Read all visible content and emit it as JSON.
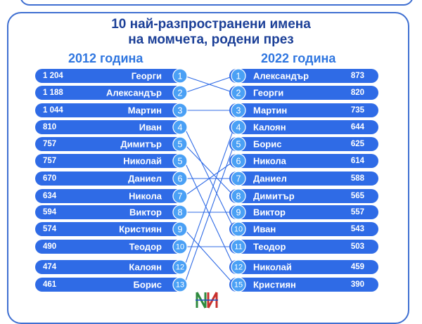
{
  "title_line1": "10 най-разпространени имена",
  "title_line2": "на момчета, родени през",
  "left_heading": "2012 година",
  "right_heading": "2022 година",
  "colors": {
    "bar": "#2f6be6",
    "bar_dark": "#1e4fc4",
    "badge": "#4aa0f5",
    "text": "#ffffff",
    "line": "#2f6be6",
    "title": "#1b3f97",
    "heading": "#2f76e0"
  },
  "chart_data": {
    "type": "table",
    "series": [
      {
        "name": "2012 година",
        "rows": [
          {
            "rank": "1",
            "name": "Георги",
            "value": "1 204"
          },
          {
            "rank": "2",
            "name": "Александър",
            "value": "1 188"
          },
          {
            "rank": "3",
            "name": "Мартин",
            "value": "1 044"
          },
          {
            "rank": "4",
            "name": "Иван",
            "value": "810"
          },
          {
            "rank": "5",
            "name": "Димитър",
            "value": "757"
          },
          {
            "rank": "5",
            "name": "Николай",
            "value": "757"
          },
          {
            "rank": "6",
            "name": "Даниел",
            "value": "670"
          },
          {
            "rank": "7",
            "name": "Никола",
            "value": "634"
          },
          {
            "rank": "8",
            "name": "Виктор",
            "value": "594"
          },
          {
            "rank": "9",
            "name": "Кристиян",
            "value": "574"
          },
          {
            "rank": "10",
            "name": "Теодор",
            "value": "490"
          },
          {
            "rank": "12",
            "name": "Калоян",
            "value": "474"
          },
          {
            "rank": "13",
            "name": "Борис",
            "value": "461"
          }
        ]
      },
      {
        "name": "2022 година",
        "rows": [
          {
            "rank": "1",
            "name": "Александър",
            "value": "873"
          },
          {
            "rank": "2",
            "name": "Георги",
            "value": "820"
          },
          {
            "rank": "3",
            "name": "Мартин",
            "value": "735"
          },
          {
            "rank": "4",
            "name": "Калоян",
            "value": "644"
          },
          {
            "rank": "5",
            "name": "Борис",
            "value": "625"
          },
          {
            "rank": "6",
            "name": "Никола",
            "value": "614"
          },
          {
            "rank": "7",
            "name": "Даниел",
            "value": "588"
          },
          {
            "rank": "8",
            "name": "Димитър",
            "value": "565"
          },
          {
            "rank": "9",
            "name": "Виктор",
            "value": "557"
          },
          {
            "rank": "10",
            "name": "Иван",
            "value": "543"
          },
          {
            "rank": "11",
            "name": "Теодор",
            "value": "503"
          },
          {
            "rank": "12",
            "name": "Николай",
            "value": "459"
          },
          {
            "rank": "15",
            "name": "Кристиян",
            "value": "390"
          }
        ]
      }
    ],
    "links": [
      {
        "from": 0,
        "to": 1
      },
      {
        "from": 1,
        "to": 0
      },
      {
        "from": 2,
        "to": 2
      },
      {
        "from": 3,
        "to": 9
      },
      {
        "from": 4,
        "to": 7
      },
      {
        "from": 5,
        "to": 11
      },
      {
        "from": 6,
        "to": 6
      },
      {
        "from": 7,
        "to": 5
      },
      {
        "from": 8,
        "to": 8
      },
      {
        "from": 9,
        "to": 12
      },
      {
        "from": 10,
        "to": 10
      },
      {
        "from": 11,
        "to": 3
      },
      {
        "from": 12,
        "to": 4
      }
    ]
  }
}
